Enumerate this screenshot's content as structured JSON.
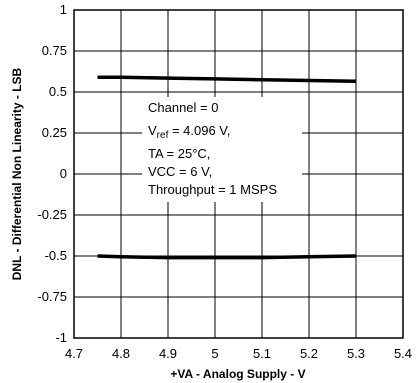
{
  "chart_data": {
    "type": "line",
    "xlabel": "+VA - Analog Supply - V",
    "ylabel": "DNL - Differential Non Linearity - LSB",
    "xlim": [
      4.7,
      5.4
    ],
    "ylim": [
      -1,
      1
    ],
    "x_ticks": [
      "4.7",
      "4.8",
      "4.9",
      "5",
      "5.1",
      "5.2",
      "5.3",
      "5.4"
    ],
    "y_ticks": [
      "1",
      "0.75",
      "0.5",
      "0.25",
      "0",
      "-0.25",
      "-0.5",
      "-0.75",
      "-1"
    ],
    "grid": true,
    "series": [
      {
        "x": [
          4.75,
          4.8,
          4.9,
          5.0,
          5.1,
          5.2,
          5.3
        ],
        "y": [
          0.59,
          0.59,
          0.585,
          0.58,
          0.575,
          0.57,
          0.565
        ]
      },
      {
        "x": [
          4.75,
          4.8,
          4.9,
          5.0,
          5.1,
          5.2,
          5.3
        ],
        "y": [
          -0.5,
          -0.505,
          -0.51,
          -0.51,
          -0.51,
          -0.505,
          -0.5
        ]
      }
    ],
    "annotation": {
      "line1": "Channel = 0",
      "line2_main": "V",
      "line2_sub": "ref",
      "line2_rest": " = 4.096 V,",
      "line3": "TA = 25°C,",
      "line4": "VCC = 6 V,",
      "line5": "Throughput = 1 MSPS"
    },
    "colors": {
      "series": "#000000",
      "grid": "#000000"
    }
  }
}
